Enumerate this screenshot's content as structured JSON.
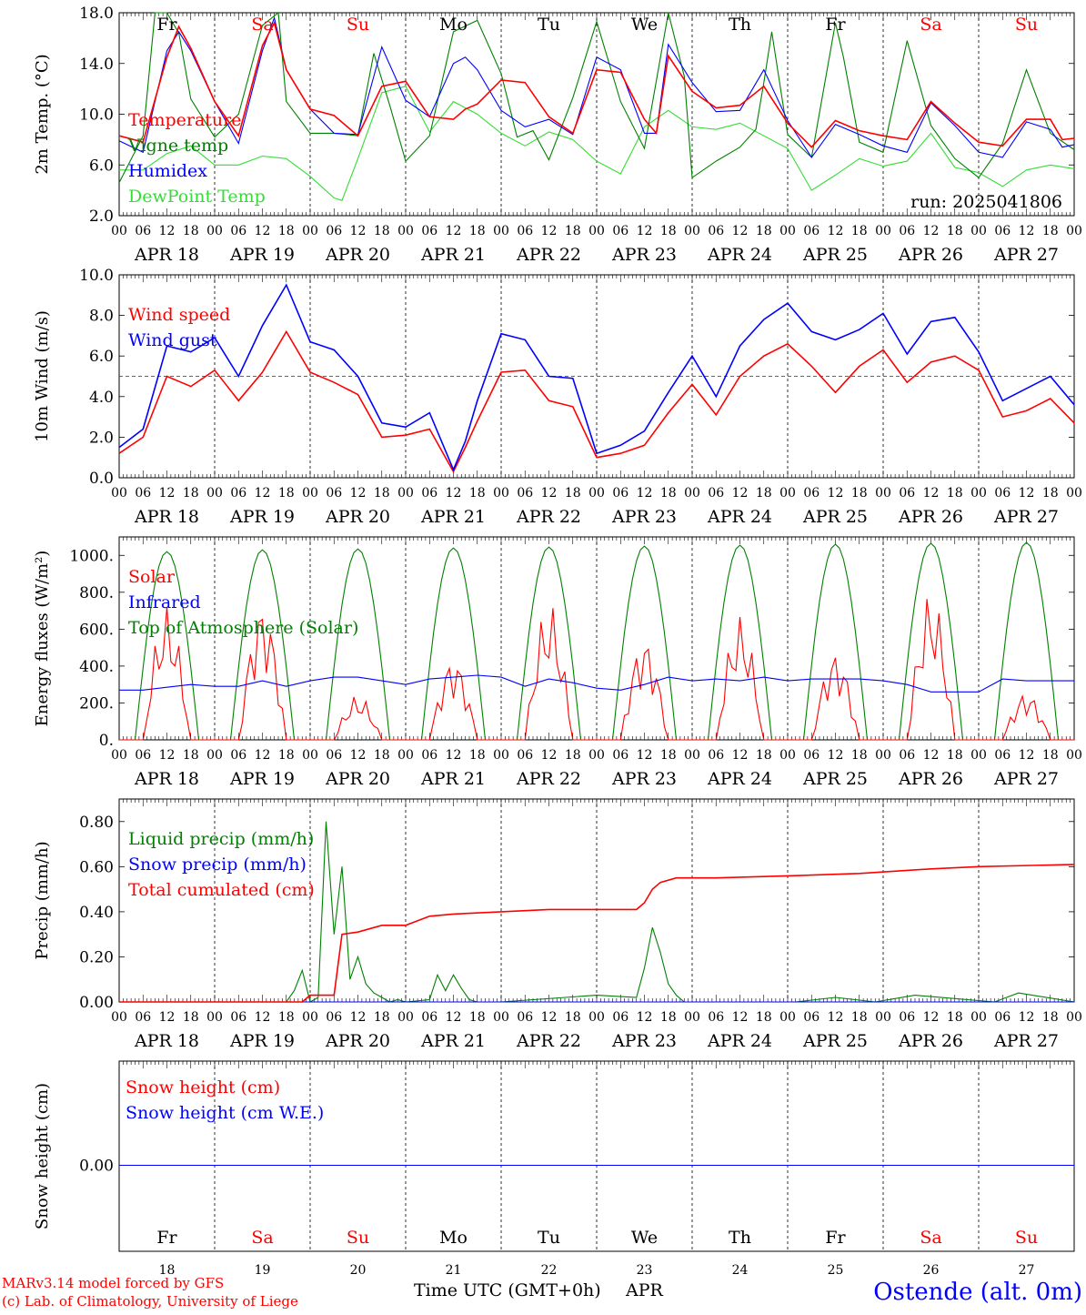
{
  "run_label": "run: 2025041806",
  "footer": {
    "credit_line1": "MARv3.14 model forced by GFS",
    "credit_line2": "(c) Lab. of Climatology, University of Liege",
    "xaxis_label": "Time UTC (GMT+0h)",
    "month": "APR",
    "station": "Ostende (alt. 0m)"
  },
  "colors": {
    "red": "#ff0000",
    "blue": "#0000ff",
    "green": "#008000",
    "lightgreen": "#33dd33",
    "black": "#000000"
  },
  "days": [
    {
      "abbr": "Fr",
      "date": "APR 18",
      "num": "18",
      "weekend": false
    },
    {
      "abbr": "Sa",
      "date": "APR 19",
      "num": "19",
      "weekend": true
    },
    {
      "abbr": "Su",
      "date": "APR 20",
      "num": "20",
      "weekend": true
    },
    {
      "abbr": "Mo",
      "date": "APR 21",
      "num": "21",
      "weekend": false
    },
    {
      "abbr": "Tu",
      "date": "APR 22",
      "num": "22",
      "weekend": false
    },
    {
      "abbr": "We",
      "date": "APR 23",
      "num": "23",
      "weekend": false
    },
    {
      "abbr": "Th",
      "date": "APR 24",
      "num": "24",
      "weekend": false
    },
    {
      "abbr": "Fr",
      "date": "APR 25",
      "num": "25",
      "weekend": false
    },
    {
      "abbr": "Sa",
      "date": "APR 26",
      "num": "26",
      "weekend": true
    },
    {
      "abbr": "Su",
      "date": "APR 27",
      "num": "27",
      "weekend": true
    }
  ],
  "hour_ticks": [
    "00",
    "06",
    "12",
    "18"
  ],
  "chart_data": [
    {
      "type": "line",
      "ylabel": "2m Temp. (°C)",
      "ylim": [
        2,
        18
      ],
      "yticks": [
        "2.0",
        "6.0",
        "10.0",
        "14.0",
        "18.0"
      ],
      "series": [
        {
          "name": "Temperature",
          "color": "#ff0000",
          "x": [
            0,
            6,
            12,
            15,
            18,
            24,
            30,
            36,
            39,
            42,
            48,
            54,
            60,
            66,
            72,
            78,
            84,
            87,
            90,
            96,
            102,
            108,
            114,
            120,
            126,
            132,
            135,
            138,
            144,
            150,
            156,
            162,
            168,
            174,
            180,
            186,
            192,
            198,
            204,
            210,
            216,
            222,
            228,
            234,
            237,
            240
          ],
          "y": [
            8.3,
            7.8,
            14.5,
            16.9,
            15.2,
            11.0,
            8.3,
            15.4,
            17.2,
            13.5,
            10.4,
            9.9,
            8.3,
            12.2,
            12.6,
            9.8,
            9.6,
            10.4,
            10.8,
            12.7,
            12.5,
            9.8,
            8.5,
            13.5,
            13.3,
            9.6,
            8.5,
            14.6,
            11.8,
            10.5,
            10.7,
            12.2,
            9.3,
            7.4,
            9.5,
            8.7,
            8.3,
            8.0,
            11.0,
            9.3,
            7.8,
            7.5,
            9.6,
            9.6,
            8.0,
            8.1
          ]
        },
        {
          "name": "Vigne temp",
          "color": "#008000",
          "x": [
            0,
            6,
            9,
            12,
            15,
            18,
            24,
            30,
            36,
            40,
            42,
            48,
            54,
            60,
            64,
            68,
            72,
            78,
            84,
            90,
            96,
            100,
            104,
            108,
            114,
            120,
            126,
            132,
            138,
            142,
            144,
            150,
            156,
            160,
            162,
            164,
            168,
            174,
            180,
            182,
            186,
            192,
            198,
            204,
            210,
            216,
            222,
            228,
            234,
            240
          ],
          "y": [
            4.6,
            8.3,
            18.0,
            18.0,
            16.4,
            11.2,
            8.2,
            10.0,
            17.0,
            18.0,
            11.0,
            8.5,
            8.5,
            8.3,
            14.8,
            10.7,
            6.3,
            8.3,
            16.5,
            17.4,
            13.2,
            8.2,
            8.7,
            6.4,
            11.3,
            17.3,
            11.0,
            7.3,
            18.0,
            13.0,
            5.0,
            6.3,
            7.4,
            8.8,
            12.5,
            16.5,
            8.4,
            6.6,
            17.2,
            14.5,
            7.8,
            7.0,
            15.8,
            9.1,
            6.5,
            5.0,
            7.7,
            13.5,
            8.5,
            7.2
          ]
        },
        {
          "name": "Humidex",
          "color": "#0000ff",
          "x": [
            0,
            6,
            12,
            15,
            18,
            24,
            30,
            36,
            39,
            42,
            48,
            54,
            60,
            66,
            72,
            78,
            84,
            87,
            90,
            96,
            102,
            108,
            114,
            120,
            126,
            132,
            135,
            138,
            144,
            150,
            156,
            162,
            168,
            174,
            180,
            186,
            192,
            198,
            204,
            210,
            216,
            222,
            228,
            234,
            237,
            240
          ],
          "y": [
            7.9,
            7.0,
            15.0,
            16.5,
            15.0,
            11.0,
            7.7,
            15.0,
            17.6,
            13.5,
            10.4,
            8.5,
            8.4,
            15.3,
            11.1,
            9.8,
            14.0,
            14.5,
            13.5,
            10.3,
            9.0,
            9.6,
            8.4,
            14.5,
            13.5,
            8.5,
            8.5,
            15.5,
            12.5,
            10.2,
            10.3,
            13.5,
            9.5,
            6.6,
            9.2,
            8.4,
            7.5,
            7.0,
            10.9,
            9.1,
            7.0,
            6.6,
            9.4,
            8.8,
            7.4,
            7.6
          ]
        },
        {
          "name": "DewPoint Temp",
          "color": "#33dd33",
          "x": [
            0,
            6,
            12,
            18,
            24,
            30,
            36,
            42,
            48,
            54,
            56,
            60,
            66,
            72,
            78,
            84,
            90,
            96,
            102,
            108,
            114,
            120,
            126,
            132,
            138,
            144,
            150,
            156,
            162,
            168,
            174,
            180,
            186,
            192,
            198,
            204,
            210,
            216,
            222,
            228,
            234,
            240
          ],
          "y": [
            5.6,
            5.6,
            6.9,
            7.5,
            6.0,
            6.0,
            6.7,
            6.5,
            5.1,
            3.4,
            3.2,
            6.5,
            11.7,
            12.2,
            8.6,
            11.0,
            10.0,
            8.5,
            7.5,
            8.6,
            8.0,
            6.3,
            5.3,
            9.0,
            10.3,
            9.0,
            8.8,
            9.3,
            8.3,
            7.3,
            4.0,
            5.2,
            6.5,
            5.9,
            6.3,
            8.5,
            5.8,
            5.4,
            4.3,
            5.6,
            6.0,
            5.7
          ]
        }
      ],
      "grid": "daily dashed",
      "legend_location": "left"
    },
    {
      "type": "line",
      "ylabel": "10m Wind (m/s)",
      "ylim": [
        0,
        10
      ],
      "yticks": [
        "0.0",
        "2.0",
        "4.0",
        "6.0",
        "8.0",
        "10.0"
      ],
      "reference_line": 5,
      "series": [
        {
          "name": "Wind speed",
          "color": "#ff0000",
          "x": [
            0,
            6,
            12,
            18,
            24,
            30,
            36,
            42,
            48,
            54,
            60,
            66,
            72,
            78,
            84,
            87,
            90,
            96,
            102,
            108,
            114,
            120,
            126,
            132,
            138,
            144,
            150,
            156,
            162,
            168,
            174,
            180,
            186,
            192,
            198,
            204,
            210,
            216,
            222,
            228,
            234,
            240
          ],
          "y": [
            1.2,
            2.0,
            5.0,
            4.5,
            5.3,
            3.8,
            5.2,
            7.2,
            5.2,
            4.7,
            4.1,
            2.0,
            2.1,
            2.4,
            0.3,
            1.5,
            2.8,
            5.2,
            5.3,
            3.8,
            3.5,
            1.0,
            1.2,
            1.6,
            3.2,
            4.6,
            3.1,
            5.0,
            6.0,
            6.6,
            5.5,
            4.2,
            5.5,
            6.3,
            4.7,
            5.7,
            6.0,
            5.3,
            3.0,
            3.3,
            3.9,
            2.7
          ]
        },
        {
          "name": "Wind gust",
          "color": "#0000ff",
          "x": [
            0,
            6,
            12,
            18,
            24,
            30,
            36,
            42,
            48,
            54,
            60,
            66,
            72,
            78,
            84,
            87,
            90,
            96,
            102,
            108,
            114,
            120,
            126,
            132,
            138,
            144,
            150,
            156,
            162,
            168,
            174,
            180,
            186,
            192,
            198,
            204,
            210,
            216,
            222,
            228,
            234,
            240
          ],
          "y": [
            1.5,
            2.4,
            6.5,
            6.2,
            6.9,
            5.0,
            7.5,
            9.5,
            6.7,
            6.3,
            5.0,
            2.7,
            2.5,
            3.2,
            0.4,
            1.8,
            3.8,
            7.1,
            6.8,
            5.0,
            4.9,
            1.2,
            1.6,
            2.3,
            4.2,
            6.0,
            4.0,
            6.5,
            7.8,
            8.6,
            7.2,
            6.8,
            7.3,
            8.1,
            6.1,
            7.7,
            7.9,
            6.2,
            3.8,
            4.4,
            5.0,
            3.6
          ]
        }
      ],
      "legend_location": "left"
    },
    {
      "type": "line",
      "ylabel": "Energy fluxes (W/m²)",
      "ylim": [
        0,
        1100
      ],
      "yticks": [
        "0.",
        "200.",
        "400.",
        "600.",
        "800.",
        "1000."
      ],
      "series": [
        {
          "name": "Solar",
          "color": "#ff0000",
          "peaks": [
            720,
            750,
            240,
            450,
            740,
            560,
            670,
            480,
            800,
            260
          ]
        },
        {
          "name": "Infrared",
          "color": "#0000ff",
          "x": [
            0,
            6,
            12,
            18,
            24,
            30,
            36,
            42,
            48,
            54,
            60,
            66,
            72,
            78,
            84,
            90,
            96,
            102,
            108,
            114,
            120,
            126,
            132,
            138,
            144,
            150,
            156,
            162,
            168,
            174,
            180,
            186,
            192,
            198,
            204,
            210,
            216,
            222,
            228,
            234,
            240
          ],
          "y": [
            270,
            270,
            285,
            300,
            290,
            290,
            320,
            290,
            320,
            340,
            340,
            320,
            300,
            330,
            340,
            350,
            340,
            290,
            330,
            310,
            280,
            270,
            300,
            340,
            320,
            330,
            320,
            340,
            320,
            330,
            330,
            330,
            320,
            300,
            260,
            260,
            260,
            330,
            320,
            320,
            320
          ]
        },
        {
          "name": "Top of Atmosphere (Solar)",
          "color": "#008000",
          "peaks": [
            1020,
            1030,
            1035,
            1040,
            1045,
            1050,
            1055,
            1060,
            1065,
            1070
          ]
        }
      ],
      "legend_location": "left"
    },
    {
      "type": "line",
      "ylabel": "Precip (mm/h)",
      "ylim": [
        0,
        0.9
      ],
      "yticks": [
        "0.00",
        "0.20",
        "0.40",
        "0.60",
        "0.80"
      ],
      "series": [
        {
          "name": "Liquid precip (mm/h)",
          "color": "#008000",
          "x": [
            0,
            42,
            44,
            46,
            48,
            50,
            52,
            54,
            56,
            58,
            60,
            62,
            64,
            66,
            68,
            70,
            72,
            78,
            80,
            82,
            84,
            86,
            88,
            90,
            96,
            120,
            130,
            132,
            134,
            136,
            138,
            140,
            142,
            150,
            170,
            180,
            190,
            200,
            220,
            226,
            240
          ],
          "y": [
            0,
            0,
            0.05,
            0.14,
            0,
            0.02,
            0.8,
            0.3,
            0.6,
            0.1,
            0.2,
            0.08,
            0.04,
            0.02,
            0,
            0.01,
            0,
            0.01,
            0.12,
            0.05,
            0.12,
            0.06,
            0.01,
            0,
            0,
            0.03,
            0.02,
            0.15,
            0.33,
            0.22,
            0.08,
            0.03,
            0,
            0,
            0,
            0.02,
            0,
            0.03,
            0,
            0.04,
            0
          ]
        },
        {
          "name": "Snow precip (mm/h)",
          "color": "#0000ff",
          "x": [
            0,
            240
          ],
          "y": [
            0,
            0
          ]
        },
        {
          "name": "Total cumulated (cm)",
          "color": "#ff0000",
          "x": [
            0,
            46,
            48,
            54,
            56,
            60,
            66,
            72,
            78,
            84,
            96,
            108,
            120,
            130,
            132,
            134,
            136,
            140,
            150,
            170,
            186,
            204,
            216,
            240
          ],
          "y": [
            0,
            0,
            0.03,
            0.03,
            0.3,
            0.31,
            0.34,
            0.34,
            0.38,
            0.39,
            0.4,
            0.41,
            0.41,
            0.41,
            0.44,
            0.5,
            0.53,
            0.55,
            0.55,
            0.56,
            0.57,
            0.59,
            0.6,
            0.61
          ]
        }
      ],
      "legend_location": "left"
    },
    {
      "type": "line",
      "ylabel": "Snow height (cm)",
      "yticks": [
        "0.00"
      ],
      "series": [
        {
          "name": "Snow height (cm)",
          "color": "#ff0000",
          "x": [
            0,
            240
          ],
          "y": [
            0,
            0
          ]
        },
        {
          "name": "Snow height (cm W.E.)",
          "color": "#0000ff",
          "x": [
            0,
            240
          ],
          "y": [
            0,
            0
          ]
        }
      ],
      "legend_location": "left"
    }
  ]
}
